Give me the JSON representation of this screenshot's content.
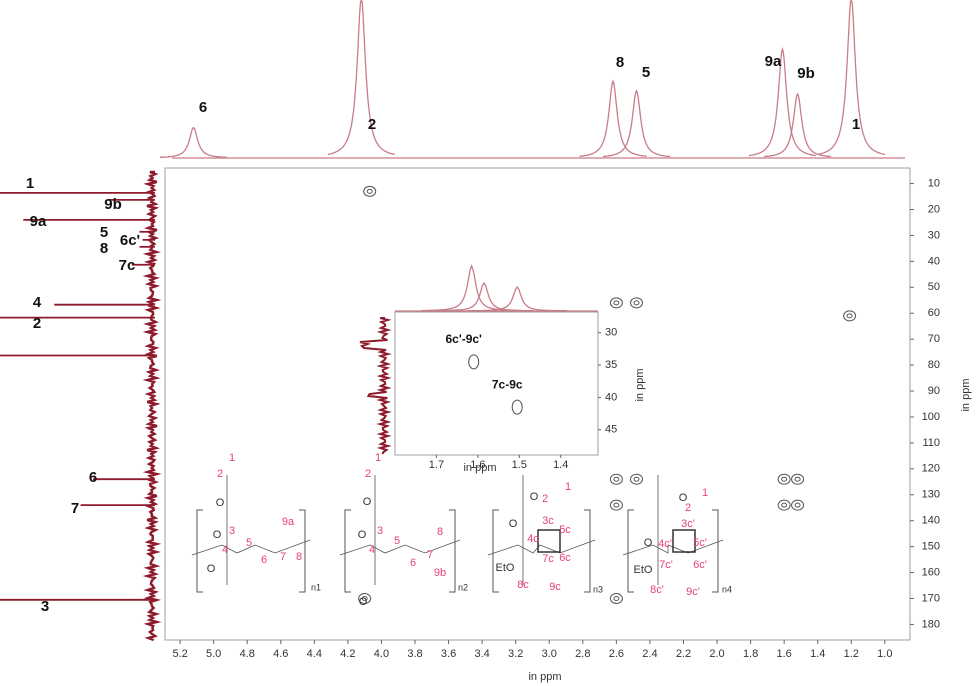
{
  "chart_data": {
    "type": "hsqc",
    "xlabel": "in ppm",
    "ylabel": "in ppm",
    "xlim": [
      5.29,
      0.85
    ],
    "ylim": [
      4,
      186
    ],
    "xticks": [
      5.2,
      {
        "value": 5,
        "label": "5.0"
      },
      4.8,
      4.6,
      4.4,
      4.2,
      {
        "value": 4,
        "label": "4.0"
      },
      3.8,
      3.6,
      3.4,
      3.2,
      {
        "value": 3,
        "label": "3.0"
      },
      2.8,
      2.6,
      2.4,
      2.2,
      {
        "value": 2,
        "label": "2.0"
      },
      1.8,
      1.6,
      1.4,
      1.2,
      {
        "value": 1,
        "label": "1.0"
      }
    ],
    "yticks": [
      10,
      20,
      30,
      40,
      50,
      60,
      70,
      80,
      90,
      100,
      110,
      120,
      130,
      140,
      150,
      160,
      170,
      180
    ],
    "proton_color": "#c97c88",
    "carbon_color": "#8e1b2c",
    "contour_color": "#555555",
    "proton_peaks": [
      {
        "label": "6",
        "ppm": 5.12,
        "intensity": 19
      },
      {
        "label": "2",
        "ppm": 4.12,
        "intensity": 100
      },
      {
        "label": "8",
        "ppm": 2.62,
        "intensity": 48
      },
      {
        "label": "5",
        "ppm": 2.48,
        "intensity": 42
      },
      {
        "label": "9a",
        "ppm": 1.61,
        "intensity": 68
      },
      {
        "label": "9b",
        "ppm": 1.52,
        "intensity": 40
      },
      {
        "label": "1",
        "ppm": 1.2,
        "intensity": 100
      }
    ],
    "carbon_peaks": [
      {
        "label": "1",
        "ppm": 13.6,
        "intensity": 100
      },
      {
        "label": "9b",
        "ppm": 16.3,
        "intensity": 30
      },
      {
        "label": "9a",
        "ppm": 24,
        "intensity": 85
      },
      {
        "label": "5",
        "ppm": 28.6,
        "intensity": 10
      },
      {
        "label": "6c'",
        "ppm": 31.7,
        "intensity": 8
      },
      {
        "label": "8",
        "ppm": 34.4,
        "intensity": 10
      },
      {
        "label": "7c",
        "ppm": 41.3,
        "intensity": 15
      },
      {
        "label": "4",
        "ppm": 56.7,
        "intensity": 65
      },
      {
        "label": "2",
        "ppm": 61.7,
        "intensity": 100
      },
      {
        "label": null,
        "ppm": 76.3,
        "intensity": 100
      },
      {
        "label": "6",
        "ppm": 124,
        "intensity": 40
      },
      {
        "label": "7",
        "ppm": 134,
        "intensity": 48
      },
      {
        "label": "3",
        "ppm": 170.5,
        "intensity": 100
      }
    ],
    "cross_peaks": [
      {
        "x": 4.07,
        "y": 13
      },
      {
        "x": 2.6,
        "y": 56
      },
      {
        "x": 2.48,
        "y": 56
      },
      {
        "x": 1.21,
        "y": 61
      },
      {
        "x": 2.6,
        "y": 124
      },
      {
        "x": 2.48,
        "y": 124
      },
      {
        "x": 1.6,
        "y": 124
      },
      {
        "x": 1.52,
        "y": 124
      },
      {
        "x": 2.6,
        "y": 134
      },
      {
        "x": 1.6,
        "y": 134
      },
      {
        "x": 1.52,
        "y": 134
      },
      {
        "x": 2.6,
        "y": 170
      },
      {
        "x": 4.1,
        "y": 170
      }
    ],
    "inset": {
      "xlabel": "in ppm",
      "ylabel": "in ppm",
      "xlim": [
        1.8,
        1.31
      ],
      "ylim": [
        26.8,
        48.9
      ],
      "xticks": [
        1.7,
        1.6,
        1.5,
        1.4
      ],
      "yticks": [
        30,
        35,
        40,
        45
      ],
      "peaks": [
        {
          "ppm": 1.615,
          "intensity": 45
        },
        {
          "ppm": 1.585,
          "intensity": 28
        },
        {
          "ppm": 1.505,
          "intensity": 24
        }
      ],
      "cross_peaks": [
        {
          "label": "6c'-9c'",
          "x": 1.61,
          "y": 34.5
        },
        {
          "label": "7c-9c",
          "x": 1.505,
          "y": 41.5
        }
      ]
    },
    "label_color": "#e8407a",
    "structures": [
      {
        "labels": [
          "1",
          "2",
          "3",
          "4",
          "5",
          "6",
          "7",
          "8",
          "9a"
        ],
        "atoms": [
          "O",
          "O",
          "O"
        ],
        "n": "n1"
      },
      {
        "labels": [
          "1",
          "2",
          "3",
          "4",
          "5",
          "6",
          "7",
          "9b",
          "8"
        ],
        "atoms": [
          "O",
          "O",
          "O"
        ],
        "n": "n2"
      },
      {
        "labels": [
          "2",
          "1",
          "3c",
          "4c",
          "5c",
          "7c",
          "6c",
          "8c",
          "9c"
        ],
        "atoms": [
          "O",
          "O",
          "EtO"
        ],
        "n": "n3"
      },
      {
        "labels": [
          "2",
          "1",
          "3c'",
          "4c'",
          "5c'",
          "7c'",
          "6c'",
          "8c'",
          "9c'"
        ],
        "atoms": [
          "O",
          "O",
          "EtO"
        ],
        "n": "n4"
      }
    ]
  }
}
